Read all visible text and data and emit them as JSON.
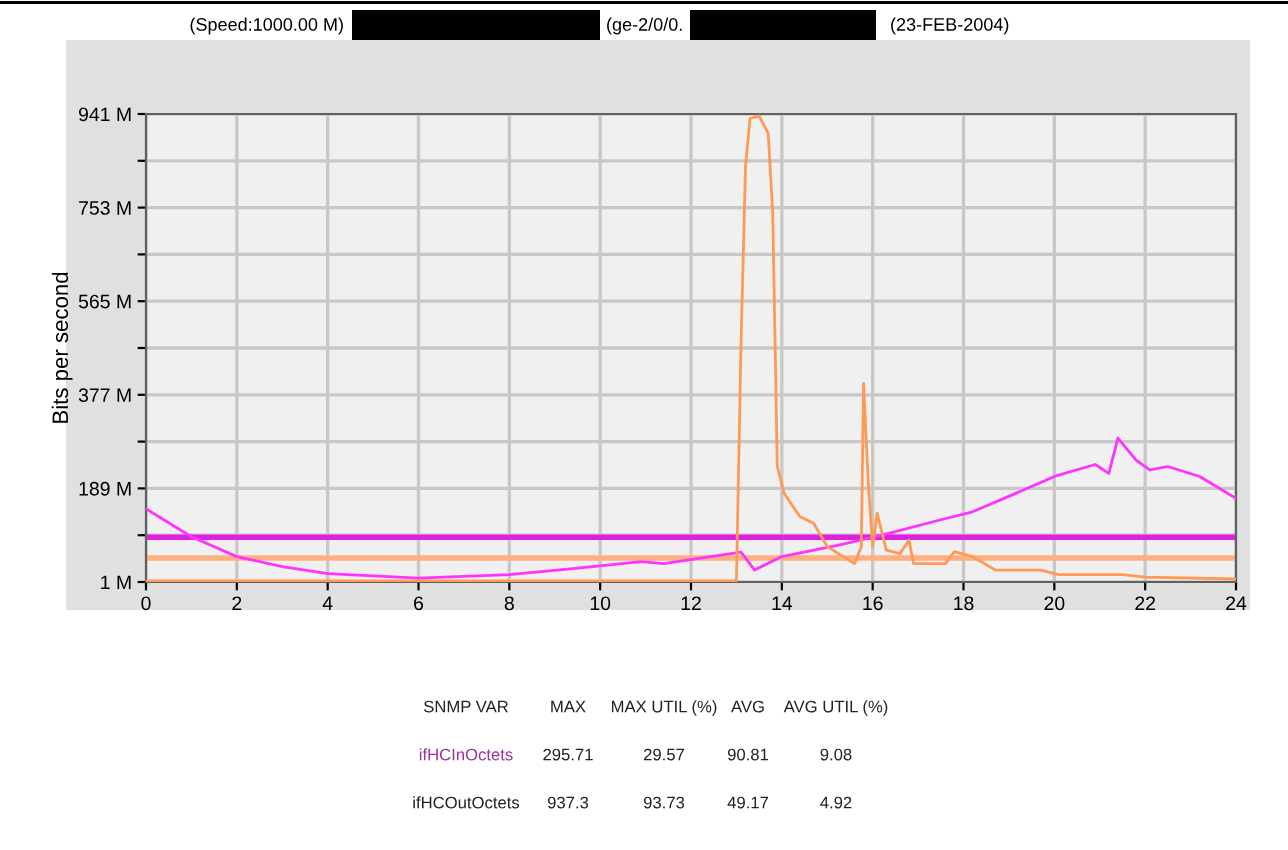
{
  "chart_data": {
    "type": "line",
    "title": "(Speed:1000.00 M)",
    "subtitle": "(ge-2/0/0.",
    "ylabel": "Bits per second",
    "xlim": [
      0,
      24
    ],
    "xticks": [
      0,
      2,
      4,
      6,
      8,
      10,
      12,
      14,
      16,
      18,
      20,
      22,
      24
    ],
    "ylim": [
      1,
      941
    ],
    "yticks": [
      {
        "value": 1,
        "label": "1 M"
      },
      {
        "value": 95,
        "label": null
      },
      {
        "value": 189,
        "label": "189 M"
      },
      {
        "value": 283,
        "label": null
      },
      {
        "value": 377,
        "label": "377 M"
      },
      {
        "value": 471,
        "label": null
      },
      {
        "value": 565,
        "label": "565 M"
      },
      {
        "value": 659,
        "label": null
      },
      {
        "value": 753,
        "label": "753 M"
      },
      {
        "value": 847,
        "label": null
      },
      {
        "value": 941,
        "label": "941 M"
      }
    ],
    "grid": true,
    "series": [
      {
        "color": "#ff33ff",
        "x": [
          0,
          1,
          2,
          3,
          4,
          6,
          8,
          9.4,
          10.9,
          11.4,
          13.1,
          13.4,
          14.0,
          15.3,
          16.2,
          17.5,
          18.2,
          19.1,
          20.0,
          20.9,
          21.2,
          21.4,
          21.8,
          22.1,
          22.5,
          23.2,
          24
        ],
        "values": [
          148,
          92,
          52,
          32,
          18,
          9,
          16,
          28,
          42,
          38,
          61,
          25,
          52,
          76,
          95,
          126,
          142,
          177,
          213,
          237,
          219,
          290,
          246,
          226,
          233,
          213,
          169
        ]
      },
      {
        "color": "#ff9955",
        "x": [
          0,
          6,
          13.0,
          13.1,
          13.2,
          13.3,
          13.5,
          13.7,
          13.8,
          13.9,
          14.05,
          14.4,
          14.7,
          15.0,
          15.6,
          15.75,
          15.8,
          15.9,
          16.0,
          16.1,
          16.3,
          16.6,
          16.8,
          16.9,
          17.6,
          17.8,
          18.2,
          18.7,
          19.7,
          20.1,
          21.5,
          22,
          24
        ],
        "values": [
          3,
          3,
          3,
          474,
          835,
          932,
          937,
          902,
          741,
          233,
          179,
          132,
          119,
          72,
          38,
          72,
          400,
          206,
          72,
          139,
          65,
          58,
          85,
          38,
          38,
          62,
          52,
          25,
          25,
          16,
          16,
          11,
          7
        ]
      }
    ],
    "ref_lines": [
      {
        "axis": "y",
        "value": 90.81,
        "color": "#e020e0"
      },
      {
        "axis": "y",
        "value": 49.17,
        "color": "#ffb080"
      }
    ],
    "annotations": [
      "(23-FEB-2004)",
      "SNMP VAR",
      "MAX",
      "MAX UTIL (%)",
      "AVG",
      "AVG UTIL (%)",
      "ifHCInOctets",
      "295.71",
      "29.57",
      "90.81",
      "9.08",
      "ifHCOutOctets",
      "937.3",
      "93.73",
      "49.17",
      "4.92"
    ]
  }
}
